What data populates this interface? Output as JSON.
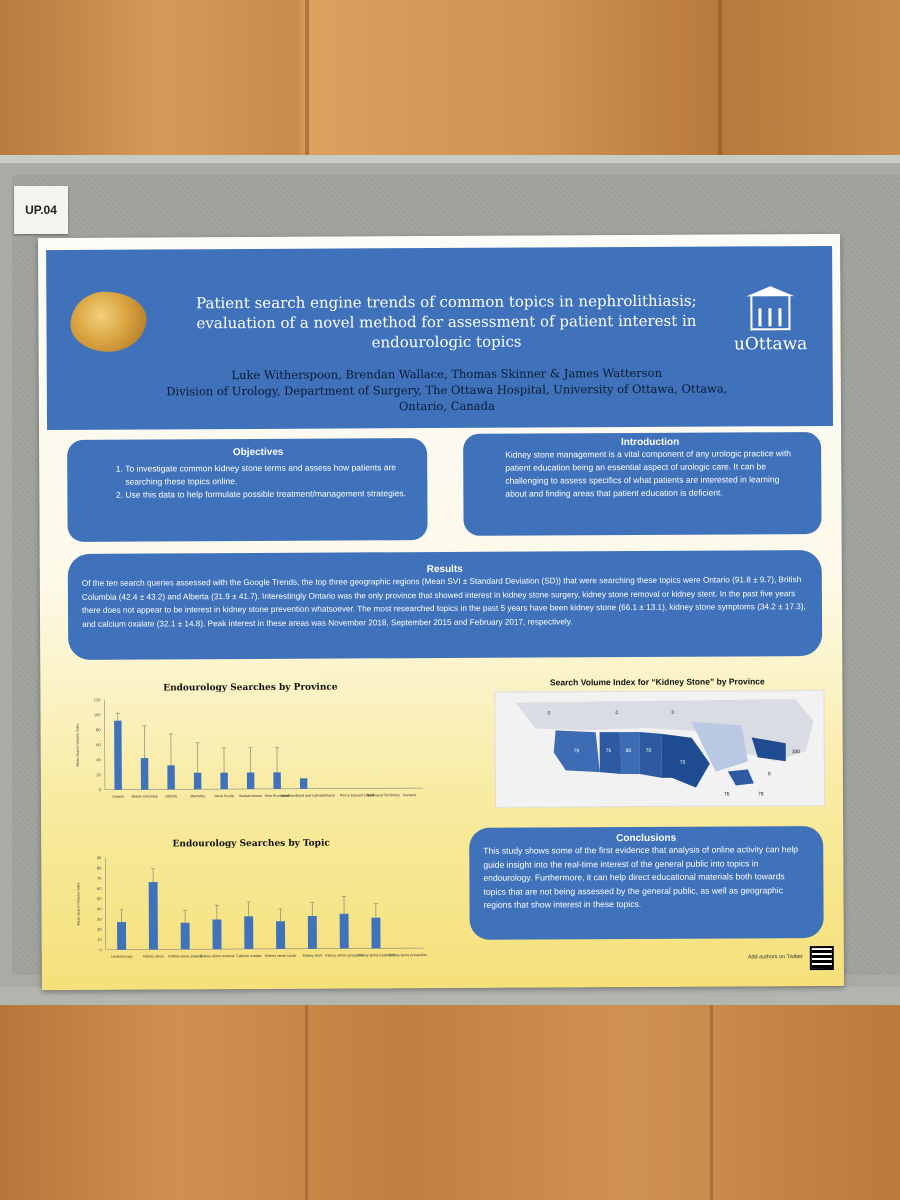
{
  "board_label": "UP.04",
  "poster": {
    "title": "Patient search engine trends of common topics in nephrolithiasis; evaluation of a novel method for assessment of patient interest in endourologic topics",
    "authors": "Luke Witherspoon, Brendan Wallace, Thomas Skinner & James Watterson",
    "affiliation": "Division of Urology, Department of Surgery, The Ottawa Hospital, University of Ottawa, Ottawa, Ontario, Canada",
    "logo_text": "uOttawa",
    "objectives": {
      "heading": "Objectives",
      "items": [
        "To investigate common kidney stone terms and assess how patients are searching these topics online.",
        "Use this data to help formulate possible treatment/management strategies."
      ]
    },
    "introduction": {
      "heading": "Introduction",
      "text": "Kidney stone management is a vital component of any urologic practice with patient education being an essential aspect of urologic care. It can be challenging to assess specifics of what patients are interested in learning about and finding areas that patient education is deficient."
    },
    "results": {
      "heading": "Results",
      "text": "Of the ten search queries assessed with the Google Trends, the top three geographic regions (Mean SVI ± Standard Deviation (SD)) that were searching these topics were Ontario (91.8 ± 9.7), British Columbia (42.4 ± 43.2) and Alberta (31.9 ± 41.7). Interestingly Ontario was the only province that showed interest in kidney stone surgery, kidney stone removal or kidney stent. In the past five years there does not appear to be interest in kidney stone prevention whatsoever. The most researched topics in the past 5 years have been kidney stone (66.1 ± 13.1), kidney stone symptoms (34.2 ± 17.3), and calcium oxalate (32.1 ± 14.8). Peak interest in these areas was November 2018, September 2015 and February 2017, respectively."
    },
    "map": {
      "title": "Search Volume Index for “Kidney Stone” by Province",
      "labels": [
        "0",
        "0",
        "0",
        "76",
        "75",
        "80",
        "70",
        "76",
        "100",
        "76",
        "78",
        "0"
      ]
    },
    "conclusions": {
      "heading": "Conclusions",
      "text": "This study shows some of the first evidence that analysis of online activity can help guide insight into the real-time interest of the general public into topics in endourology. Furthermore, it can help direct educational materials both towards topics that are not being assessed by the general public, as well as geographic regions that show interest in these topics."
    },
    "footer_note": "Add authors on Twitter"
  },
  "chart_data": [
    {
      "type": "bar",
      "title": "Endourology Searches by Province",
      "ylabel": "Mean Search Volume Index",
      "ylim": [
        0,
        120
      ],
      "yticks": [
        0,
        20,
        40,
        60,
        80,
        100,
        120
      ],
      "categories": [
        "Ontario",
        "British Columbia",
        "Alberta",
        "Manitoba",
        "Nova Scotia",
        "Saskatchewan",
        "New Brunswick",
        "Newfoundland and Labrador",
        "Yukon",
        "Prince Edward Island",
        "Northwest Territories",
        "Nunavut"
      ],
      "values": [
        92,
        42,
        32,
        22,
        22,
        22,
        22,
        14,
        0,
        0,
        0,
        0
      ],
      "errors": [
        10,
        43,
        42,
        40,
        33,
        33,
        33,
        0,
        0,
        0,
        0,
        0
      ],
      "color": "#3f72ba"
    },
    {
      "type": "bar",
      "title": "Endourology Searches by Topic",
      "ylabel": "Mean Search Volume Index",
      "ylim": [
        0,
        90
      ],
      "yticks": [
        0,
        10,
        20,
        30,
        40,
        50,
        60,
        70,
        80,
        90
      ],
      "categories": [
        "Ureteroscopy",
        "Kidney stone",
        "Kidney stone surgery",
        "Kidney stone removal",
        "Calcium oxalate",
        "Kidney stone cause",
        "Kidney stent",
        "Kidney stone symptoms",
        "Kidney stone treatment",
        "Kidney stone prevention"
      ],
      "values": [
        27,
        66,
        26,
        29,
        32,
        27,
        32,
        34,
        30,
        0
      ],
      "errors": [
        12,
        13,
        12,
        14,
        14,
        12,
        13,
        17,
        14,
        0
      ],
      "color": "#3f72ba"
    }
  ]
}
